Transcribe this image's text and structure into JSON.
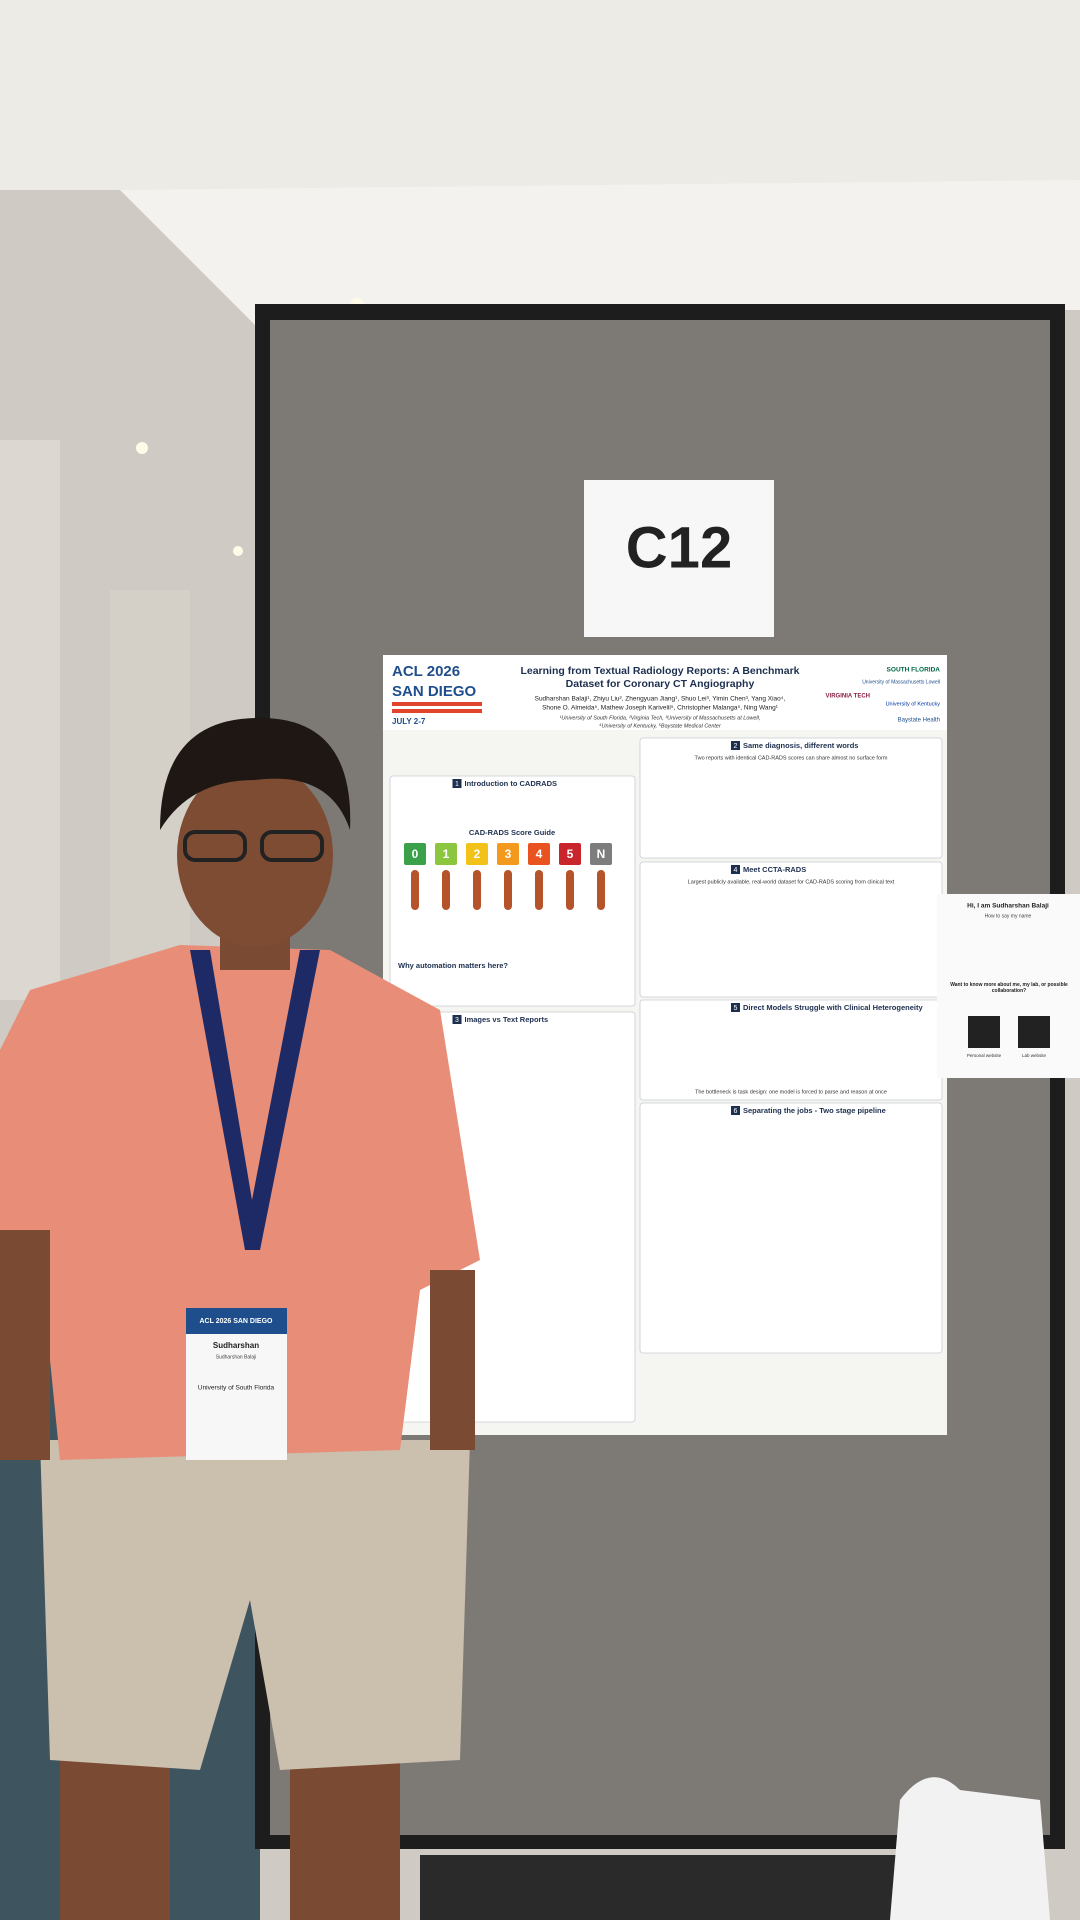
{
  "sign": {
    "label": "C12"
  },
  "poster": {
    "conference": {
      "name": "ACL 2026",
      "location": "SAN DIEGO",
      "dates": "JULY 2-7"
    },
    "title_lines": [
      "Learning from Textual Radiology Reports: A Benchmark",
      "Dataset for Coronary CT Angiography"
    ],
    "authors_lines": [
      "Sudharshan Balaji¹, Zhiyu Liu², Zhengyuan Jiang¹, Shuo Lei³, Yimin Chen³, Yang Xiao⁴,",
      "Shone O. Almeida⁵, Mathew Joseph Karivelil⁵, Christopher Malanga⁵, Ning Wang¹"
    ],
    "affiliations_lines": [
      "¹University of South Florida, ²Virginia Tech, ³University of Massachusetts at Lowell,",
      "⁴University of Kentucky, ⁵Baystate Medical Center"
    ],
    "logos": [
      "SOUTH FLORIDA",
      "University of Massachusetts Lowell",
      "VIRGINIA TECH",
      "University of Kentucky",
      "Baystate Health"
    ],
    "sections": [
      {
        "number": "1",
        "title": "Introduction to CADRADS"
      },
      {
        "number": "2",
        "title": "Same diagnosis, different words"
      },
      {
        "number": "3",
        "title": "Images vs Text Reports"
      },
      {
        "number": "4",
        "title": "Meet CCTA-RADS"
      },
      {
        "number": "5",
        "title": "Direct Models Struggle with Clinical Heterogeneity"
      },
      {
        "number": "6",
        "title": "Separating the jobs - Two stage pipeline"
      }
    ],
    "score_guide": {
      "title": "CAD-RADS Score Guide",
      "scores": [
        "0",
        "1",
        "2",
        "3",
        "4",
        "5",
        "N"
      ]
    },
    "why_title": "Why automation matters here?",
    "reports_line": "Two reports with identical CAD-RADS scores can share almost no surface form",
    "dataset_line": "Largest publicly available, real-world dataset for CAD-RADS scoring from clinical text",
    "bottleneck_line": "The bottleneck is task design: one model is forced to parse and reason at once"
  },
  "badge": {
    "event": "ACL 2026 SAN DIEGO",
    "first_name": "Sudharshan",
    "full_name": "Sudharshan Balaji",
    "affiliation": "University of South Florida"
  },
  "flyer": {
    "greeting": "Hi, I am Sudharshan Balaji",
    "subtitle": "How to say my name",
    "question": "Want to know more about me, my lab, or possible collaboration?",
    "qr_labels": [
      "Personal website",
      "Lab website"
    ]
  }
}
